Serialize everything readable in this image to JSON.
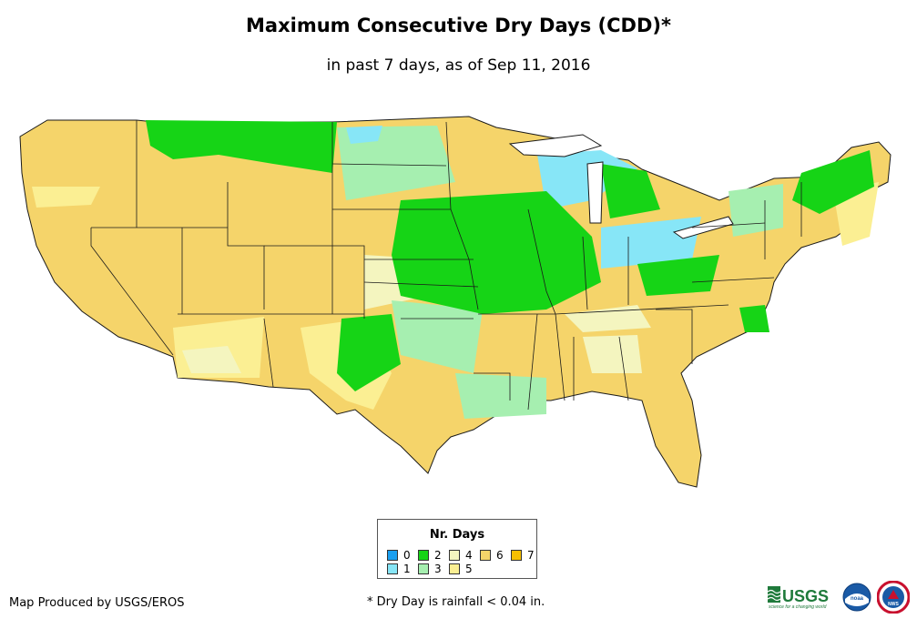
{
  "map": {
    "title": "Maximum Consecutive Dry Days (CDD)*",
    "subtitle": "in past 7 days, as of Sep 11, 2016",
    "region": "Contiguous United States",
    "land_base_color": "#f5d46a",
    "state_line_color": "#1a1a1a"
  },
  "legend": {
    "title": "Nr. Days",
    "items": [
      {
        "label": "0",
        "color": "#1a9ff0"
      },
      {
        "label": "1",
        "color": "#87e6f7"
      },
      {
        "label": "2",
        "color": "#16d416"
      },
      {
        "label": "3",
        "color": "#a6efb0"
      },
      {
        "label": "4",
        "color": "#f4f5bf"
      },
      {
        "label": "5",
        "color": "#fbef93"
      },
      {
        "label": "6",
        "color": "#f5d46a"
      },
      {
        "label": "7",
        "color": "#f6bf00"
      }
    ]
  },
  "footer": {
    "producer": "Map Produced by USGS/EROS",
    "footnote": "* Dry Day is rainfall < 0.04 in."
  },
  "logos": {
    "usgs_text": "USGS",
    "usgs_tagline": "science for a changing world",
    "noaa_text": "noaa",
    "nws_text": "NWS"
  }
}
